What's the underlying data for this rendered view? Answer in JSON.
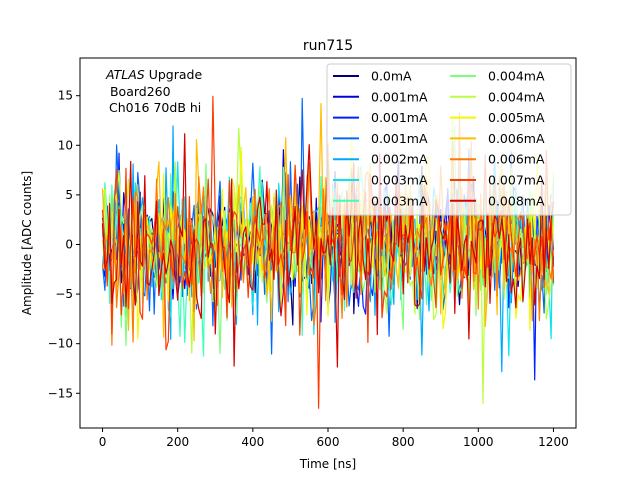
{
  "chart_data": {
    "type": "line",
    "title": "run715",
    "xlabel": "Time [ns]",
    "ylabel": "Amplitude [ADC counts]",
    "xlim": [
      -60,
      1260
    ],
    "ylim": [
      -18.5,
      18.8
    ],
    "xticks": [
      0,
      200,
      400,
      600,
      800,
      1000,
      1200
    ],
    "yticks": [
      -15,
      -10,
      -5,
      0,
      5,
      10,
      15
    ],
    "grid": false,
    "legend_location": "top-right",
    "legend_columns": 2,
    "annotation": {
      "line1_italic": "ATLAS",
      "line1_rest": " Upgrade",
      "line2": " Board260",
      "line3": "Ch016 70dB hi"
    },
    "x_sampling": {
      "start": 0,
      "end": 1200,
      "step": 6.25
    },
    "noise_envelope": {
      "typical_amplitude": 5.5,
      "max_amplitude": 17.5,
      "min_amplitude": -16.5
    },
    "series": [
      {
        "name": "0.0mA",
        "color": "#00007f"
      },
      {
        "name": "0.001mA",
        "color": "#0000d4"
      },
      {
        "name": "0.001mA",
        "color": "#0020ff"
      },
      {
        "name": "0.001mA",
        "color": "#0068ff"
      },
      {
        "name": "0.002mA",
        "color": "#00a8ff"
      },
      {
        "name": "0.003mA",
        "color": "#0ae4ef"
      },
      {
        "name": "0.003mA",
        "color": "#3dffb9"
      },
      {
        "name": "0.004mA",
        "color": "#7bff7b"
      },
      {
        "name": "0.004mA",
        "color": "#b9ff3d"
      },
      {
        "name": "0.005mA",
        "color": "#f4f802"
      },
      {
        "name": "0.006mA",
        "color": "#ffbd00"
      },
      {
        "name": "0.006mA",
        "color": "#ff7a00"
      },
      {
        "name": "0.007mA",
        "color": "#ff3b00"
      },
      {
        "name": "0.008mA",
        "color": "#d40000"
      }
    ]
  }
}
